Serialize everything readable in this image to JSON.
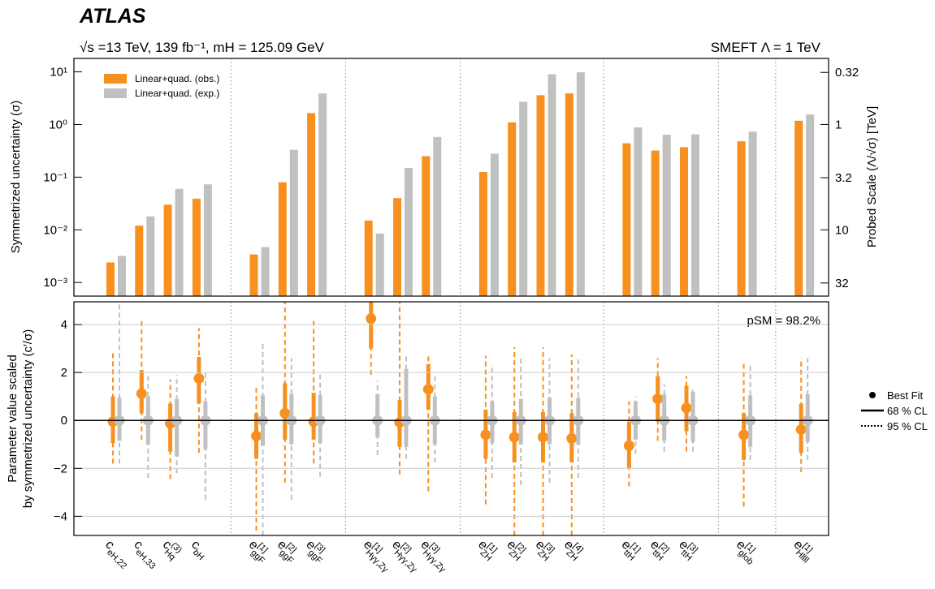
{
  "chart_data": [
    {
      "type": "bar",
      "title": "ATLAS",
      "subtitle": "√s =13 TeV, 139 fb⁻¹, mH = 125.09 GeV",
      "annotation": "SMEFT Λ = 1 TeV",
      "ylabel": "Symmetrized uncertainty (σ)",
      "y2label": "Probed Scale (Λ/√σ) [TeV]",
      "ylog": true,
      "ylim": [
        0.00055,
        18
      ],
      "yticks": [
        {
          "value": 0.001,
          "label": "10⁻³"
        },
        {
          "value": 0.01,
          "label": "10⁻²"
        },
        {
          "value": 0.1,
          "label": "10⁻¹"
        },
        {
          "value": 1,
          "label": "10⁰"
        },
        {
          "value": 10,
          "label": "10¹"
        }
      ],
      "y2scale": "inverse_sqrt",
      "y2lim": [
        42.6,
        0.236
      ],
      "y2ticks": [
        32,
        10,
        3.2,
        1,
        0.32
      ],
      "legend": "upper left",
      "categories": [
        {
          "base": "c",
          "sub": "eH,22"
        },
        {
          "base": "c",
          "sub": "eH,33"
        },
        {
          "base": "c",
          "sup": "(3)",
          "sub": "Hq"
        },
        {
          "base": "c",
          "sub": "bH"
        },
        {
          "base": "e",
          "sup": "[1]",
          "sub": "ggF"
        },
        {
          "base": "e",
          "sup": "[2]",
          "sub": "ggF"
        },
        {
          "base": "e",
          "sup": "[3]",
          "sub": "ggF"
        },
        {
          "base": "e",
          "sup": "[1]",
          "sub": "Hγγ,Zγ"
        },
        {
          "base": "e",
          "sup": "[2]",
          "sub": "Hγγ,Zγ"
        },
        {
          "base": "e",
          "sup": "[3]",
          "sub": "Hγγ,Zγ"
        },
        {
          "base": "e",
          "sup": "[1]",
          "sub": "ZH"
        },
        {
          "base": "e",
          "sup": "[2]",
          "sub": "ZH"
        },
        {
          "base": "e",
          "sup": "[3]",
          "sub": "ZH"
        },
        {
          "base": "e",
          "sup": "[4]",
          "sub": "ZH"
        },
        {
          "base": "e",
          "sup": "[1]",
          "sub": "ttH"
        },
        {
          "base": "e",
          "sup": "[2]",
          "sub": "ttH"
        },
        {
          "base": "e",
          "sup": "[3]",
          "sub": "ttH"
        },
        {
          "base": "e",
          "sup": "[1]",
          "sub": "glob"
        },
        {
          "base": "e",
          "sup": "[1]",
          "sub": "Hllll"
        }
      ],
      "series": [
        {
          "name": "Linear+quad. (obs.)",
          "color": "#f7901e",
          "values": [
            0.0024,
            0.012,
            0.03,
            0.039,
            0.0034,
            0.08,
            1.65,
            0.015,
            0.04,
            0.25,
            0.125,
            1.1,
            3.6,
            3.9,
            0.44,
            0.32,
            0.37,
            0.48,
            1.18
          ]
        },
        {
          "name": "Linear+quad. (exp.)",
          "color": "#c0c0c0",
          "values": [
            0.0032,
            0.018,
            0.06,
            0.073,
            0.0047,
            0.33,
            3.9,
            0.0085,
            0.15,
            0.58,
            0.28,
            2.7,
            9.0,
            9.8,
            0.88,
            0.64,
            0.65,
            0.73,
            1.55
          ]
        }
      ]
    },
    {
      "type": "errorbar",
      "ylabel": [
        "Parameter value scaled",
        "by symmetrized uncertainty (c′/σ)"
      ],
      "annotation": "pSM = 98.2%",
      "ylim": [
        -4.8,
        4.95
      ],
      "yticks": [
        {
          "value": -4,
          "label": "−4"
        },
        {
          "value": -2,
          "label": "−2"
        },
        0,
        2,
        4
      ],
      "grid": true,
      "legend": [
        "Best Fit",
        "68 % CL",
        "95 % CL"
      ],
      "series": [
        {
          "color": "#f7901e",
          "values": [
            -0.05,
            1.12,
            -0.12,
            1.75,
            -0.65,
            0.3,
            -0.05,
            4.25,
            -0.08,
            1.3,
            -0.6,
            -0.7,
            -0.7,
            -0.75,
            -1.05,
            0.9,
            0.52,
            -0.6,
            -0.38
          ],
          "ci68": [
            [
              -0.95,
              1.0
            ],
            [
              0.3,
              2.1
            ],
            [
              -1.3,
              0.7
            ],
            [
              0.7,
              2.65
            ],
            [
              -1.6,
              0.3
            ],
            [
              -0.8,
              1.55
            ],
            [
              -0.8,
              1.15
            ],
            [
              3.0,
              5.0
            ],
            [
              -1.1,
              0.85
            ],
            [
              0.45,
              2.35
            ],
            [
              -1.6,
              0.45
            ],
            [
              -1.75,
              0.35
            ],
            [
              -1.75,
              0.35
            ],
            [
              -1.75,
              0.3
            ],
            [
              -2.0,
              -0.05
            ],
            [
              -0.05,
              1.85
            ],
            [
              -0.45,
              1.45
            ],
            [
              -1.65,
              0.3
            ],
            [
              -1.35,
              0.7
            ]
          ],
          "ci95": [
            [
              -1.8,
              2.8
            ],
            [
              -0.8,
              4.2
            ],
            [
              -2.45,
              1.7
            ],
            [
              -1.35,
              3.85
            ],
            [
              -4.6,
              1.4
            ],
            [
              -2.6,
              5.0
            ],
            [
              -1.8,
              4.15
            ],
            [
              1.9,
              5.0
            ],
            [
              -2.25,
              5.0
            ],
            [
              -2.95,
              2.8
            ],
            [
              -3.5,
              2.7
            ],
            [
              -4.8,
              3.05
            ],
            [
              -4.8,
              3.05
            ],
            [
              -4.8,
              2.75
            ],
            [
              -2.75,
              0.8
            ],
            [
              -0.85,
              2.6
            ],
            [
              -1.3,
              1.85
            ],
            [
              -3.6,
              2.4
            ],
            [
              -2.15,
              2.6
            ]
          ]
        },
        {
          "color": "#c0c0c0",
          "values": [
            0,
            0,
            0,
            0,
            0,
            0,
            0,
            0,
            0,
            0,
            0,
            0,
            0,
            0,
            0,
            0,
            0,
            0,
            0
          ],
          "ci68": [
            [
              -0.85,
              0.95
            ],
            [
              -1.0,
              1.0
            ],
            [
              -1.5,
              0.9
            ],
            [
              -1.2,
              0.8
            ],
            [
              -1.05,
              1.05
            ],
            [
              -1.0,
              1.1
            ],
            [
              -0.95,
              1.05
            ],
            [
              -0.7,
              1.1
            ],
            [
              -1.1,
              2.15
            ],
            [
              -1.0,
              1.0
            ],
            [
              -0.95,
              0.8
            ],
            [
              -1.0,
              0.9
            ],
            [
              -1.0,
              0.95
            ],
            [
              -1.0,
              0.95
            ],
            [
              -0.8,
              0.8
            ],
            [
              -0.85,
              1.1
            ],
            [
              -0.9,
              1.2
            ],
            [
              -1.1,
              1.05
            ],
            [
              -0.9,
              1.1
            ]
          ],
          "ci95": [
            [
              -1.8,
              5.0
            ],
            [
              -2.4,
              1.9
            ],
            [
              -2.2,
              1.9
            ],
            [
              -3.3,
              2.0
            ],
            [
              -4.8,
              3.3
            ],
            [
              -3.3,
              2.6
            ],
            [
              -2.35,
              2.0
            ],
            [
              -1.45,
              1.65
            ],
            [
              -1.6,
              2.7
            ],
            [
              -1.75,
              1.9
            ],
            [
              -2.4,
              2.3
            ],
            [
              -2.7,
              2.7
            ],
            [
              -2.6,
              2.6
            ],
            [
              -2.4,
              2.55
            ],
            [
              -1.4,
              1.0
            ],
            [
              -1.3,
              1.5
            ],
            [
              -1.3,
              1.3
            ],
            [
              -1.65,
              2.4
            ],
            [
              -1.65,
              2.6
            ]
          ]
        }
      ]
    }
  ]
}
